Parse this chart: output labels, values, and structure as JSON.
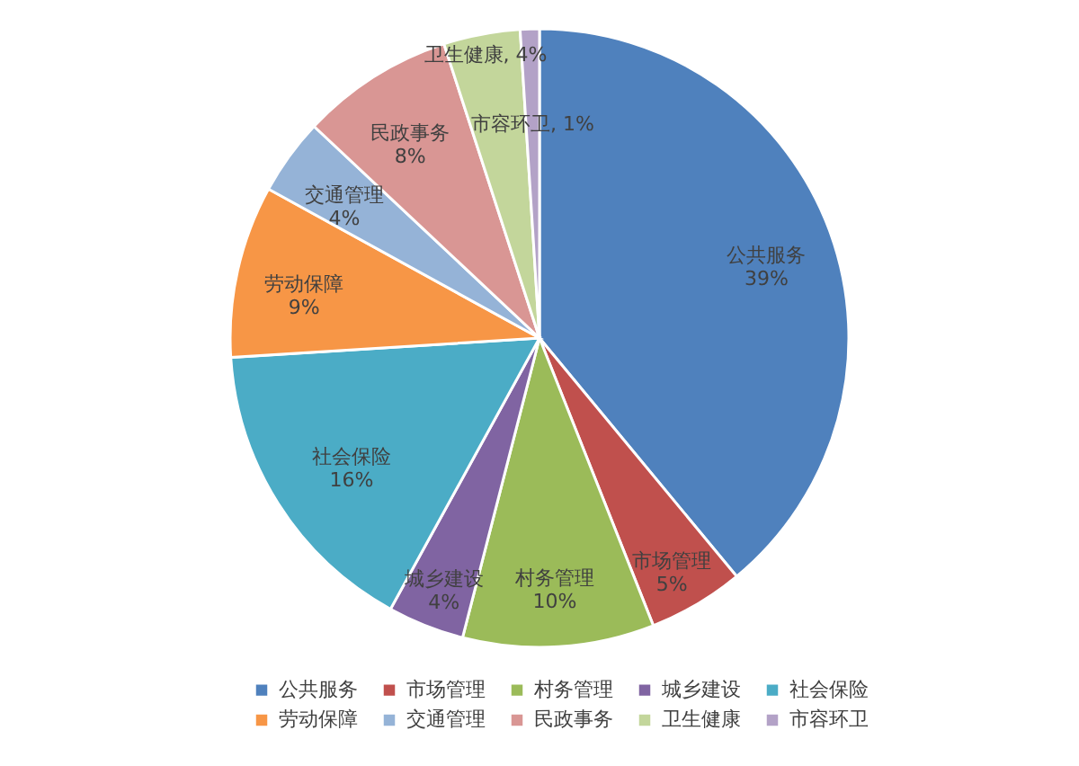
{
  "chart_data": {
    "type": "pie",
    "categories": [
      "公共服务",
      "市场管理",
      "村务管理",
      "城乡建设",
      "社会保险",
      "劳动保障",
      "交通管理",
      "民政事务",
      "卫生健康",
      "市容环卫"
    ],
    "values": [
      39,
      5,
      10,
      4,
      16,
      9,
      4,
      8,
      4,
      1
    ],
    "colors": [
      "#4f81bd",
      "#c0504d",
      "#9bbb59",
      "#8064a2",
      "#4bacc6",
      "#f79646",
      "#95b3d7",
      "#d99694",
      "#c3d69b",
      "#b3a2c7"
    ],
    "value_labels": [
      "公共服务\n39%",
      "市场管理\n5%",
      "村务管理\n10%",
      "城乡建设\n4%",
      "社会保险\n16%",
      "劳动保障\n9%",
      "交通管理\n4%",
      "民政事务\n8%",
      "卫生健康, 4%",
      "市容环卫, 1%"
    ],
    "legend": "bottom"
  }
}
